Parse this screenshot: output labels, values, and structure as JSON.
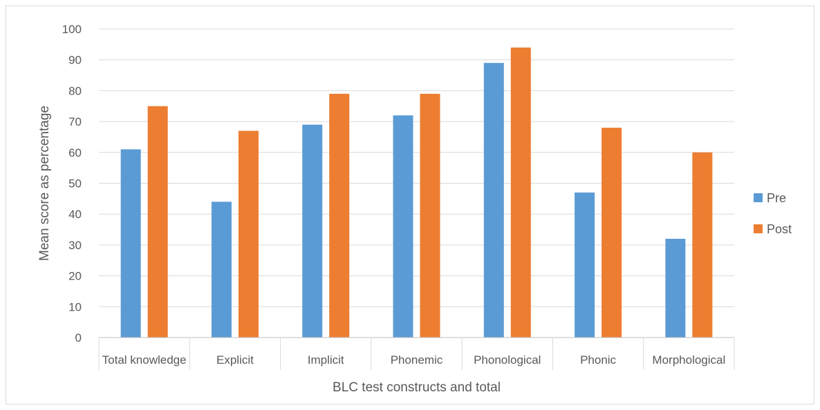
{
  "chart_data": {
    "type": "bar",
    "title": "",
    "xlabel": "BLC test constructs and total",
    "ylabel": "Mean score as percentage",
    "ylim": [
      0,
      100
    ],
    "yticks": [
      0,
      10,
      20,
      30,
      40,
      50,
      60,
      70,
      80,
      90,
      100
    ],
    "categories": [
      "Total knowledge",
      "Explicit",
      "Implicit",
      "Phonemic",
      "Phonological",
      "Phonic",
      "Morphological"
    ],
    "series": [
      {
        "name": "Pre",
        "color": "#5B9BD5",
        "values": [
          61,
          44,
          69,
          72,
          89,
          47,
          32
        ]
      },
      {
        "name": "Post",
        "color": "#ED7D31",
        "values": [
          75,
          67,
          79,
          79,
          94,
          68,
          60
        ]
      }
    ],
    "grid": true,
    "legend_position": "right"
  }
}
